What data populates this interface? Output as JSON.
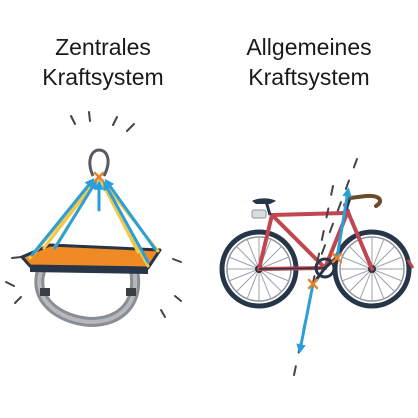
{
  "left": {
    "title": "Zentrales\nKraftsystem"
  },
  "right": {
    "title": "Allgemeines\nKraftsystem"
  },
  "colors": {
    "force_arrow": "#2a9fd8",
    "rope": "#f2c84b",
    "platform": "#f08a24",
    "frame": "#c0464f",
    "marker": "#e8832a",
    "dark": "#263547"
  }
}
